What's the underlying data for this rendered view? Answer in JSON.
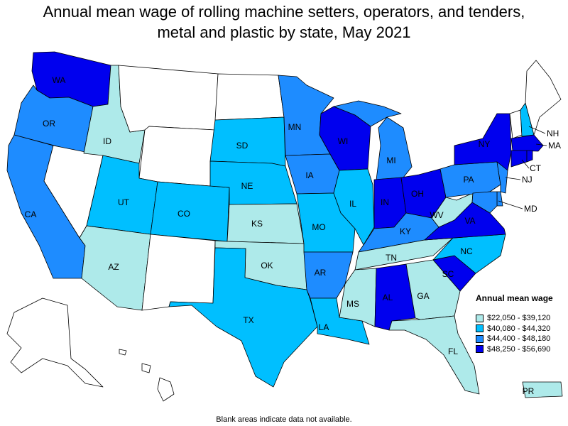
{
  "title": "Annual mean wage of rolling machine setters, operators, and tenders, metal and plastic by state, May 2021",
  "title_lines": [
    "Annual mean wage of rolling machine setters, operators, and tenders,",
    "metal and plastic by state, May 2021"
  ],
  "colors": {
    "no_data": "#ffffff",
    "range1": "#aeeaea",
    "range2": "#00bfff",
    "range3": "#1e8cff",
    "range4": "#0000ee"
  },
  "legend": {
    "title": "Annual mean wage",
    "items": [
      {
        "label": "$22,050 - $39,120",
        "color": "#aeeaea"
      },
      {
        "label": "$40,080 - $44,320",
        "color": "#00bfff"
      },
      {
        "label": "$44,400 - $48,180",
        "color": "#1e8cff"
      },
      {
        "label": "$48,250 - $56,690",
        "color": "#0000ee"
      }
    ]
  },
  "states": {
    "WA": {
      "label": "WA",
      "bin": 4
    },
    "OR": {
      "label": "OR",
      "bin": 3
    },
    "CA": {
      "label": "CA",
      "bin": 3
    },
    "ID": {
      "label": "ID",
      "bin": 1
    },
    "NV": {
      "label": "",
      "bin": 0
    },
    "MT": {
      "label": "",
      "bin": 0
    },
    "WY": {
      "label": "",
      "bin": 0
    },
    "UT": {
      "label": "UT",
      "bin": 2
    },
    "AZ": {
      "label": "AZ",
      "bin": 1
    },
    "CO": {
      "label": "CO",
      "bin": 2
    },
    "NM": {
      "label": "",
      "bin": 0
    },
    "ND": {
      "label": "",
      "bin": 0
    },
    "SD": {
      "label": "SD",
      "bin": 2
    },
    "NE": {
      "label": "NE",
      "bin": 2
    },
    "KS": {
      "label": "KS",
      "bin": 1
    },
    "OK": {
      "label": "OK",
      "bin": 1
    },
    "TX": {
      "label": "TX",
      "bin": 2
    },
    "MN": {
      "label": "MN",
      "bin": 3
    },
    "IA": {
      "label": "IA",
      "bin": 3
    },
    "MO": {
      "label": "MO",
      "bin": 2
    },
    "AR": {
      "label": "AR",
      "bin": 3
    },
    "LA": {
      "label": "LA",
      "bin": 2
    },
    "WI": {
      "label": "WI",
      "bin": 4
    },
    "IL": {
      "label": "IL",
      "bin": 2
    },
    "MI": {
      "label": "MI",
      "bin": 3
    },
    "IN": {
      "label": "IN",
      "bin": 4
    },
    "OH": {
      "label": "OH",
      "bin": 4
    },
    "KY": {
      "label": "KY",
      "bin": 3
    },
    "TN": {
      "label": "TN",
      "bin": 1
    },
    "MS": {
      "label": "MS",
      "bin": 1
    },
    "AL": {
      "label": "AL",
      "bin": 4
    },
    "GA": {
      "label": "GA",
      "bin": 1
    },
    "FL": {
      "label": "FL",
      "bin": 1
    },
    "SC": {
      "label": "SC",
      "bin": 4
    },
    "NC": {
      "label": "NC",
      "bin": 2
    },
    "VA": {
      "label": "VA",
      "bin": 4
    },
    "WV": {
      "label": "WV",
      "bin": 1
    },
    "PA": {
      "label": "PA",
      "bin": 3
    },
    "NY": {
      "label": "NY",
      "bin": 4
    },
    "VT": {
      "label": "",
      "bin": 0
    },
    "NH": {
      "label": "NH",
      "bin": 2
    },
    "ME": {
      "label": "",
      "bin": 0
    },
    "MA": {
      "label": "MA",
      "bin": 4
    },
    "CT": {
      "label": "CT",
      "bin": 4
    },
    "RI": {
      "label": "",
      "bin": 4
    },
    "NJ": {
      "label": "NJ",
      "bin": 3
    },
    "DE": {
      "label": "",
      "bin": 3
    },
    "MD": {
      "label": "MD",
      "bin": 3
    },
    "AK": {
      "label": "",
      "bin": 0
    },
    "HI": {
      "label": "",
      "bin": 0
    },
    "PR": {
      "label": "PR",
      "bin": 1
    }
  },
  "footnote": "Blank areas indicate data not available."
}
